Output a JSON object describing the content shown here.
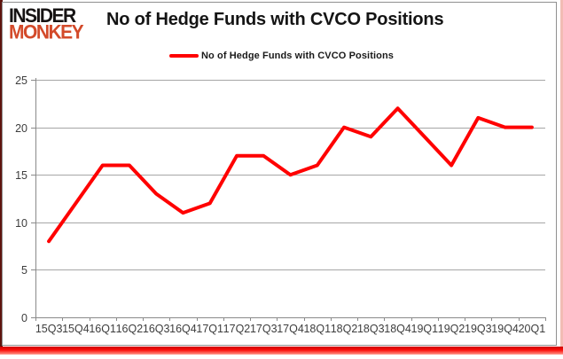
{
  "header": {
    "logo_line1": "INSIDER",
    "logo_line2": "MONKEY",
    "title": "No of Hedge Funds with CVCO Positions"
  },
  "legend": {
    "label": "No of Hedge Funds with CVCO Positions"
  },
  "chart_data": {
    "type": "line",
    "title": "No of Hedge Funds with CVCO Positions",
    "series": [
      {
        "name": "No of Hedge Funds with CVCO Positions",
        "values": [
          8,
          12,
          16,
          16,
          13,
          11,
          12,
          17,
          17,
          15,
          16,
          20,
          19,
          22,
          19,
          16,
          21,
          20,
          20
        ]
      }
    ],
    "categories": [
      "15Q3",
      "15Q4",
      "16Q1",
      "16Q2",
      "16Q3",
      "16Q4",
      "17Q1",
      "17Q2",
      "17Q3",
      "17Q4",
      "18Q1",
      "18Q2",
      "18Q3",
      "18Q4",
      "19Q1",
      "19Q2",
      "19Q3",
      "19Q4",
      "20Q1"
    ],
    "xlabel": "",
    "ylabel": "",
    "ylim": [
      0,
      25
    ],
    "yticks": [
      0,
      5,
      10,
      15,
      20,
      25
    ],
    "grid": true,
    "legend_position": "top"
  },
  "colors": {
    "line": "#ff0000",
    "logo_black": "#161313",
    "logo_red": "#d34a2a",
    "grid": "#a6a6a6",
    "axis": "#8a8a8a",
    "frame": "#8f8f8f",
    "tick_text": "#3d3d3d",
    "border_left": "#5e130d",
    "border_right": "#f2bcb4",
    "bar_top": "#cf0000",
    "bar_mid": "#fb100c",
    "bar_bottom": "#ff9c90"
  }
}
